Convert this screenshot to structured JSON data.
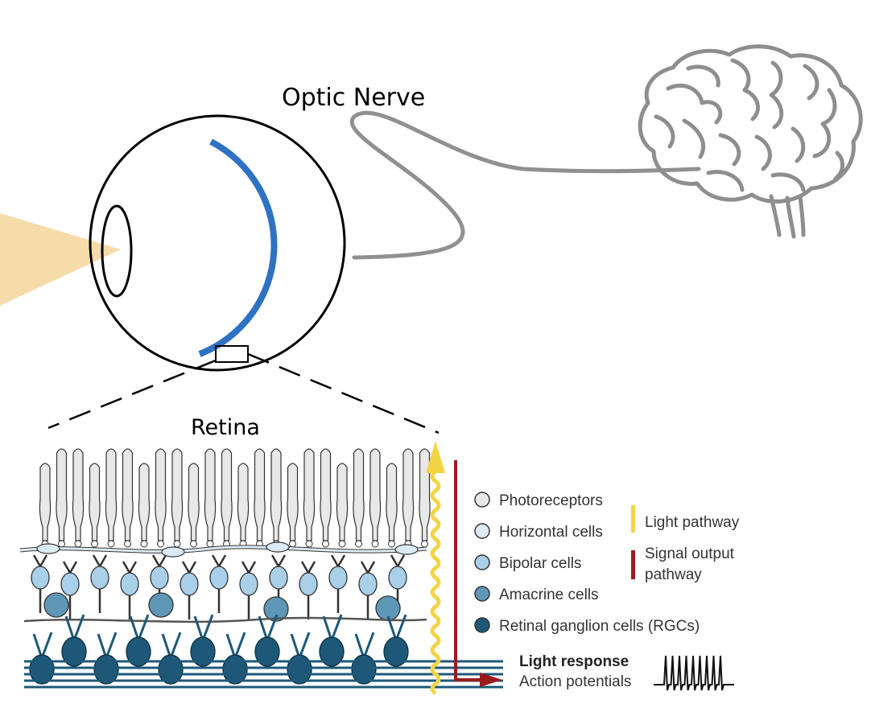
{
  "labels": {
    "optic_nerve": "Optic Nerve",
    "retina": "Retina",
    "light_response": "Light response",
    "action_potentials": "Action potentials"
  },
  "legend": {
    "cells": [
      {
        "label": "Photoreceptors",
        "color": "#e8e8e8"
      },
      {
        "label": "Horizontal cells",
        "color": "#dbeaf5"
      },
      {
        "label": "Bipolar cells",
        "color": "#a9cfe9"
      },
      {
        "label": "Amacrine cells",
        "color": "#5f97b7"
      },
      {
        "label": "Retinal ganglion cells (RGCs)",
        "color": "#1d5878"
      }
    ],
    "pathways": [
      {
        "label": "Light pathway",
        "color": "#f3d447"
      },
      {
        "label": "Signal output\npathway",
        "color": "#9b1b1b"
      }
    ]
  },
  "colors": {
    "retina_arc": "#2e72c4",
    "nerve": "#909090",
    "light_cone": "#f6dcaa",
    "photoreceptor": "#e8e8e8",
    "horizontal": "#dbeaf5",
    "bipolar": "#a9cfe9",
    "amacrine": "#5f97b7",
    "rgc": "#1d5878",
    "light_arrow": "#f3d447",
    "output_arrow": "#9b1b1b"
  }
}
